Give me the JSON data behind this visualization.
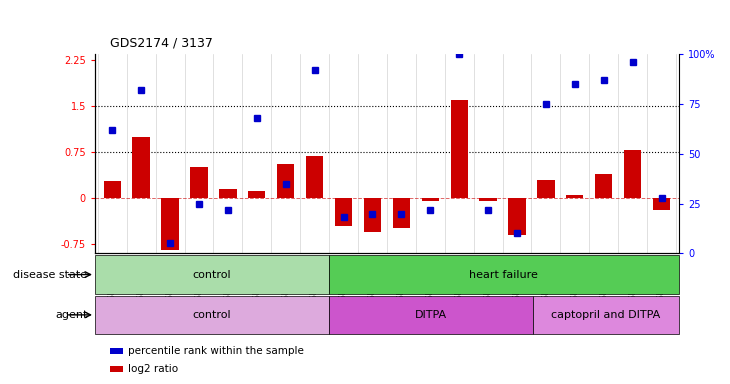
{
  "title": "GDS2174 / 3137",
  "samples": [
    "GSM111772",
    "GSM111823",
    "GSM111824",
    "GSM111825",
    "GSM111826",
    "GSM111827",
    "GSM111828",
    "GSM111829",
    "GSM111861",
    "GSM111863",
    "GSM111864",
    "GSM111865",
    "GSM111866",
    "GSM111867",
    "GSM111869",
    "GSM111870",
    "GSM112038",
    "GSM112039",
    "GSM112040",
    "GSM112041"
  ],
  "log2_ratio": [
    0.28,
    1.0,
    -0.85,
    0.5,
    0.15,
    0.12,
    0.55,
    0.68,
    -0.45,
    -0.55,
    -0.48,
    -0.05,
    1.6,
    -0.04,
    -0.6,
    0.3,
    0.05,
    0.4,
    0.78,
    -0.2
  ],
  "percentile_rank": [
    62,
    82,
    5,
    25,
    22,
    68,
    35,
    92,
    18,
    20,
    20,
    22,
    100,
    22,
    10,
    75,
    85,
    87,
    96,
    28
  ],
  "ylim_left": [
    -0.9,
    2.35
  ],
  "ylim_right": [
    0,
    100
  ],
  "yticks_left": [
    -0.75,
    0,
    0.75,
    1.5,
    2.25
  ],
  "yticks_right": [
    0,
    25,
    50,
    75,
    100
  ],
  "hlines": [
    1.5,
    0.75
  ],
  "bar_color": "#cc0000",
  "dot_color": "#0000cc",
  "disease_state_groups": [
    {
      "label": "control",
      "start": 0,
      "end": 8,
      "color": "#aaddaa"
    },
    {
      "label": "heart failure",
      "start": 8,
      "end": 20,
      "color": "#55cc55"
    }
  ],
  "agent_groups": [
    {
      "label": "control",
      "start": 0,
      "end": 8,
      "color": "#ddaadd"
    },
    {
      "label": "DITPA",
      "start": 8,
      "end": 15,
      "color": "#cc55cc"
    },
    {
      "label": "captopril and DITPA",
      "start": 15,
      "end": 20,
      "color": "#dd88dd"
    }
  ],
  "legend_items": [
    {
      "label": "log2 ratio",
      "color": "#cc0000"
    },
    {
      "label": "percentile rank within the sample",
      "color": "#0000cc"
    }
  ]
}
